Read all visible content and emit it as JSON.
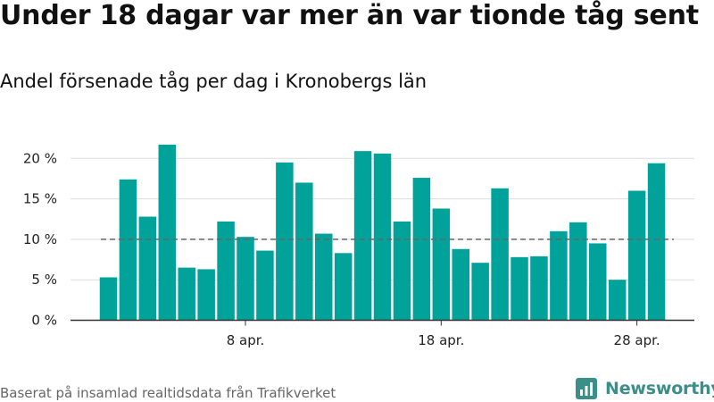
{
  "header": {
    "title": "Under 18 dagar var mer än var tionde tåg sent",
    "subtitle": "Andel försenade tåg per dag i Kronobergs län"
  },
  "footer": {
    "source": "Baserat på insamlad realtidsdata från Trafikverket",
    "brand": "Newsworthy"
  },
  "colors": {
    "bar": "#00a29a",
    "reference_line": "#666666",
    "grid": "#dddddd",
    "axis": "#333333",
    "brand": "#3a8f88"
  },
  "chart_data": {
    "type": "bar",
    "x": [
      "1 apr.",
      "2 apr.",
      "3 apr.",
      "4 apr.",
      "5 apr.",
      "6 apr.",
      "7 apr.",
      "8 apr.",
      "9 apr.",
      "10 apr.",
      "11 apr.",
      "12 apr.",
      "13 apr.",
      "14 apr.",
      "15 apr.",
      "16 apr.",
      "17 apr.",
      "18 apr.",
      "19 apr.",
      "20 apr.",
      "21 apr.",
      "22 apr.",
      "23 apr.",
      "24 apr.",
      "25 apr.",
      "26 apr.",
      "27 apr.",
      "28 apr.",
      "29 apr."
    ],
    "values": [
      5.3,
      17.4,
      12.8,
      21.7,
      6.5,
      6.3,
      12.2,
      10.3,
      8.6,
      19.5,
      17.0,
      10.7,
      8.3,
      20.9,
      20.6,
      12.2,
      17.6,
      13.8,
      8.8,
      7.1,
      16.3,
      7.8,
      7.9,
      11.0,
      12.1,
      9.5,
      5.0,
      16.0,
      19.4
    ],
    "reference_line": 10,
    "ylim": [
      0,
      22.5
    ],
    "yticks": [
      0,
      5,
      10,
      15,
      20
    ],
    "ytick_labels": [
      "0 %",
      "5 %",
      "10 %",
      "15 %",
      "20 %"
    ],
    "xticks": [
      "8 apr.",
      "18 apr.",
      "28 apr."
    ],
    "xlabel": "",
    "ylabel": "",
    "grid": "horizontal",
    "legend": "none"
  }
}
